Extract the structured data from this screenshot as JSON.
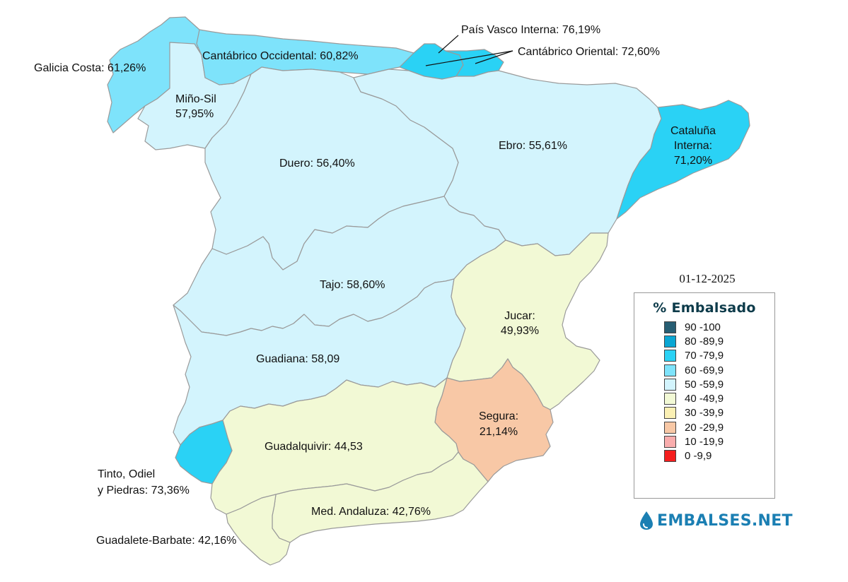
{
  "date": "01-12-2025",
  "legend": {
    "title": "% Embalsado",
    "items": [
      {
        "label": "90 -100",
        "color": "#275e73"
      },
      {
        "label": "80 -89,9",
        "color": "#0aa6d3"
      },
      {
        "label": "70 -79,9",
        "color": "#2ad2f5"
      },
      {
        "label": "60 -69,9",
        "color": "#7ee3fb"
      },
      {
        "label": "50 -59,9",
        "color": "#d3f4fd"
      },
      {
        "label": "40 -49,9",
        "color": "#f2f9d5"
      },
      {
        "label": "30 -39,9",
        "color": "#fbf0b4"
      },
      {
        "label": "20 -29,9",
        "color": "#f8c8a6"
      },
      {
        "label": "10 -19,9",
        "color": "#f9adad"
      },
      {
        "label": "0 -9,9",
        "color": "#f51e1e"
      }
    ]
  },
  "brand": {
    "name": "EMBALSES.NET",
    "color": "#1b7fb3"
  },
  "basins": {
    "galicia_costa": {
      "label": "Galicia Costa: 61,26%",
      "value": 61.26,
      "color": "#7ee3fb"
    },
    "cantabrico_occidental": {
      "label": "Cantábrico Occidental: 60,82%",
      "value": 60.82,
      "color": "#7ee3fb"
    },
    "pais_vasco_interna": {
      "label": "País Vasco Interna: 76,19%",
      "value": 76.19,
      "color": "#2ad2f5"
    },
    "cantabrico_oriental": {
      "label": "Cantábrico Oriental: 72,60%",
      "value": 72.6,
      "color": "#2ad2f5"
    },
    "mino_sil": {
      "label_line1": "Miño-Sil",
      "label_line2": "57,95%",
      "value": 57.95,
      "color": "#d3f4fd"
    },
    "cataluna_interna": {
      "label_line1": "Cataluña",
      "label_line2": "Interna:",
      "label_line3": "71,20%",
      "value": 71.2,
      "color": "#2ad2f5"
    },
    "duero": {
      "label": "Duero: 56,40%",
      "value": 56.4,
      "color": "#d3f4fd"
    },
    "ebro": {
      "label": "Ebro: 55,61%",
      "value": 55.61,
      "color": "#d3f4fd"
    },
    "tajo": {
      "label": "Tajo: 58,60%",
      "value": 58.6,
      "color": "#d3f4fd"
    },
    "jucar": {
      "label_line1": "Jucar:",
      "label_line2": "49,93%",
      "value": 49.93,
      "color": "#f2f9d5"
    },
    "guadiana": {
      "label": "Guadiana: 58,09",
      "value": 58.09,
      "color": "#d3f4fd"
    },
    "segura": {
      "label_line1": "Segura:",
      "label_line2": "21,14%",
      "value": 21.14,
      "color": "#f8c8a6"
    },
    "guadalquivir": {
      "label": "Guadalquivir: 44,53",
      "value": 44.53,
      "color": "#f2f9d5"
    },
    "tinto_odiel_piedras": {
      "label_line1": "Tinto, Odiel",
      "label_line2": "y Piedras: 73,36%",
      "value": 73.36,
      "color": "#2ad2f5"
    },
    "mediterranea_andaluza": {
      "label": "Med. Andaluza: 42,76%",
      "value": 42.76,
      "color": "#f2f9d5"
    },
    "guadalete_barbate": {
      "label": "Guadalete-Barbate: 42,16%",
      "value": 42.16,
      "color": "#f2f9d5"
    }
  }
}
